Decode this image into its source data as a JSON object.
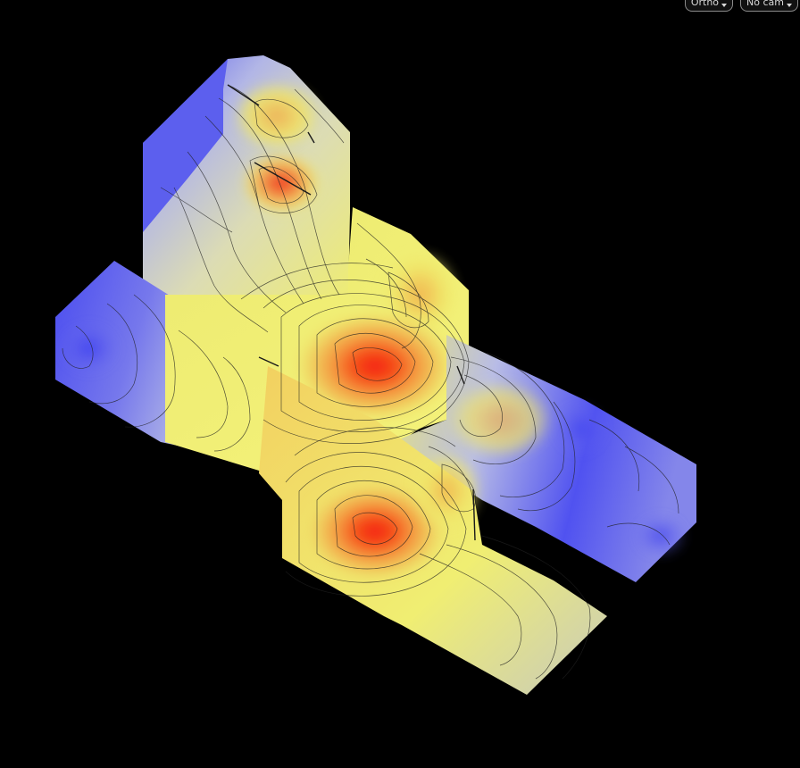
{
  "toolbar": {
    "projection_label": "Ortho",
    "camera_label": "No cam",
    "dropdown_icon": "caret-down-icon"
  },
  "viewport": {
    "background": "#000000",
    "colormap": [
      "#4848f0",
      "#b8bce8",
      "#f0ee70",
      "#f49a40",
      "#f41c10"
    ]
  }
}
